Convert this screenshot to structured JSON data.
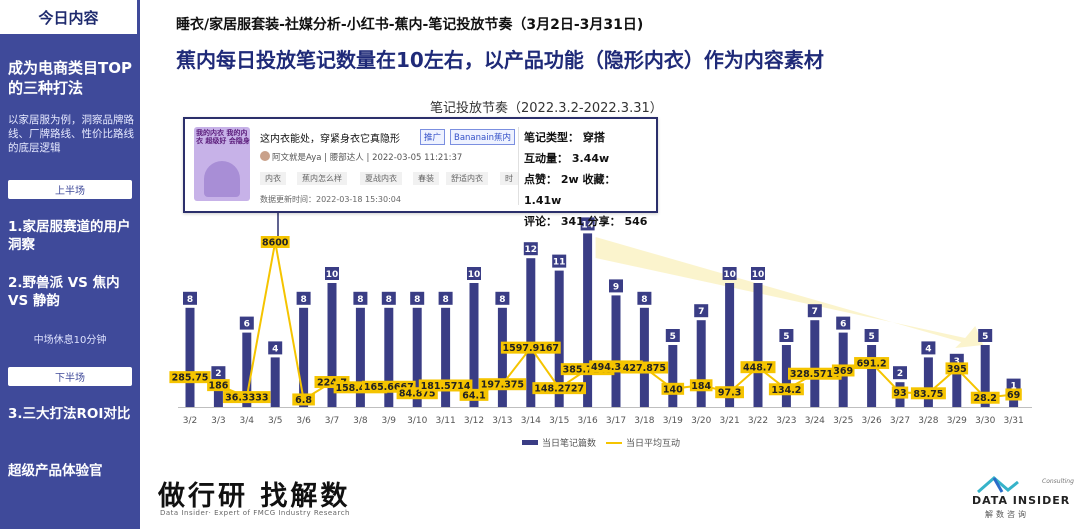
{
  "sidebar": {
    "title": "今日内容",
    "heading": "成为电商类目TOP的三种打法",
    "subtext": "以家居服为例，洞察品牌路线、厂牌路线、性价比路线的底层逻辑",
    "pill_first_half": "上半场",
    "item1": "1.家居服赛道的用户洞察",
    "item2": "2.野兽派 VS 焦内 VS 静韵",
    "break_note": "中场休息10分钟",
    "pill_second_half": "下半场",
    "item3": "3.三大打法ROI对比",
    "item4": "超级产品体验官"
  },
  "header": {
    "breadcrumb": "睡衣/家居服套装-社媒分析-小红书-蕉内-笔记投放节奏（3月2日-3月31日)",
    "headline": "蕉内每日投放笔记数量在10左右，以产品功能（隐形内衣）作为内容素材"
  },
  "post_card": {
    "thumb_text": "我的内衣 我的内衣 超级好 会隐身",
    "title": "这内衣能处，穿紧身衣它真隐形",
    "tag1": "推广",
    "tag2": "Bananain蕉内",
    "author": "阿文就是Aya",
    "author_level": "腰部达人",
    "publish_time": "2022-03-05 11:21:37",
    "chips": [
      "内衣",
      "蕉内怎么样",
      "夏战内衣",
      "春装",
      "舒适内衣",
      "时"
    ],
    "update_time": "数据更新时间：2022-03-18 15:30:04",
    "note_type": "笔记类型：  穿搭",
    "interactions": "互动量：  3.44w",
    "likes_favs": "点赞：  2w  收藏：  1.41w",
    "comments_shares": "评论：  341  分享：  546"
  },
  "footer": {
    "brand": "做行研 找解数",
    "brand_sub": "Data Insider· Expert of FMCG Industry Research",
    "logo_text": "DATA INSIDER",
    "logo_sub": "解数咨询",
    "logo_consult": "Consulting"
  },
  "colors": {
    "sidebar": "#3f4a9a",
    "bar": "#3a3d85",
    "line": "#f5c400",
    "label_bg": "#f5c400"
  },
  "chart_data": {
    "type": "bar",
    "title": "笔记投放节奏（2022.3.2-2022.3.31）",
    "categories": [
      "3/2",
      "3/3",
      "3/4",
      "3/5",
      "3/6",
      "3/7",
      "3/8",
      "3/9",
      "3/10",
      "3/11",
      "3/12",
      "3/13",
      "3/14",
      "3/15",
      "3/16",
      "3/17",
      "3/18",
      "3/19",
      "3/20",
      "3/21",
      "3/22",
      "3/23",
      "3/24",
      "3/25",
      "3/26",
      "3/27",
      "3/28",
      "3/29",
      "3/30",
      "3/31"
    ],
    "series": [
      {
        "name": "当日笔记篇数",
        "type": "bar",
        "values": [
          8,
          2,
          6,
          4,
          8,
          10,
          8,
          8,
          8,
          8,
          10,
          8,
          12,
          11,
          14,
          9,
          8,
          5,
          7,
          10,
          10,
          5,
          7,
          6,
          5,
          2,
          4,
          3,
          5,
          1
        ]
      },
      {
        "name": "当日平均互动",
        "type": "line",
        "values": [
          285.75,
          186,
          36.3333,
          8600,
          6.8,
          224.7,
          158.4444,
          165.6667,
          84.875,
          181.5714,
          64.1,
          197.375,
          1597.9167,
          148.2727,
          385.7143,
          494.3333,
          427.875,
          140,
          184,
          97.3,
          448.7,
          134.2,
          328.5714,
          369,
          691.2,
          93,
          83.75,
          395,
          28.2,
          69
        ],
        "labels": [
          "285.75",
          "186",
          "36.3333",
          "8600",
          "6.8",
          "224.7",
          "158.4444",
          "165.6667",
          "84.875",
          "181.5714",
          "64.1",
          "197.375",
          "1597.9167",
          "148.2727",
          "385.7143",
          "494.3333",
          "427.875",
          "140",
          "184",
          "97.3",
          "448.7",
          "134.2",
          "328.5714",
          "369",
          "691.2",
          "93",
          "83.75",
          "395",
          "28.2",
          "69"
        ]
      }
    ],
    "bar_ylim": [
      0,
      15
    ],
    "legend": [
      "当日笔记篇数",
      "当日平均互动"
    ]
  }
}
